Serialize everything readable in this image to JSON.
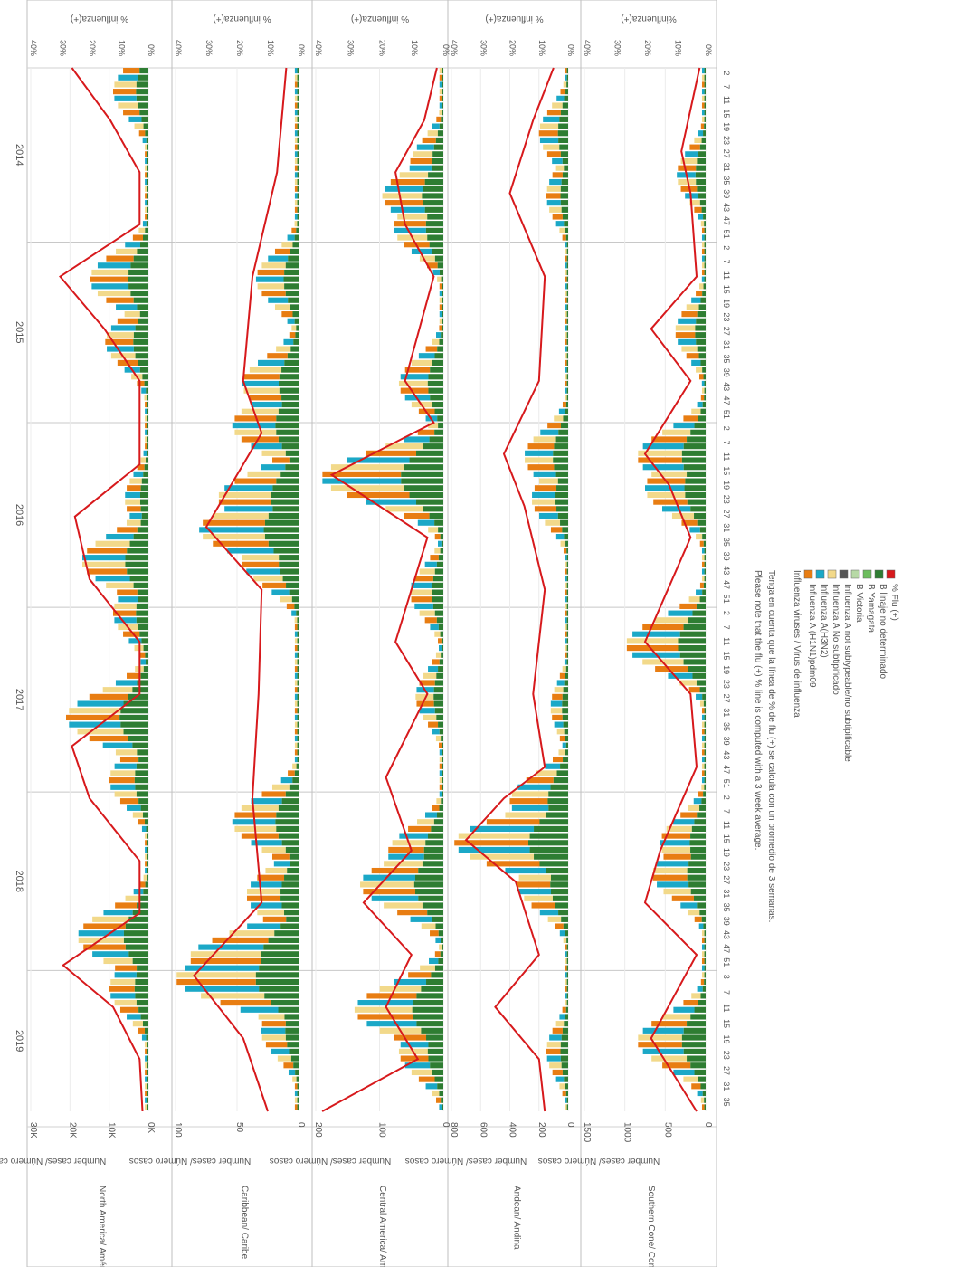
{
  "chart_data": {
    "type": "bar",
    "orientation": "rotated-90-clockwise",
    "years": [
      "2014",
      "2015",
      "2016",
      "2017",
      "2018",
      "2019"
    ],
    "week_ticks": [
      "2",
      "7",
      "11",
      "15",
      "19",
      "23",
      "27",
      "31",
      "35",
      "39",
      "43",
      "47",
      "51"
    ],
    "week_ticks_2019": [
      "3",
      "7",
      "11",
      "15",
      "19",
      "23",
      "27",
      "31",
      "35"
    ],
    "grid": true,
    "legend_position": "bottom-center",
    "legend": {
      "title": "Influenza viruses / Virus de influenza",
      "items": [
        {
          "label": "Influenza A (H1N1)pdm09",
          "color": "#e87d12"
        },
        {
          "label": "Influenza A(H3N2)",
          "color": "#1ba8c7"
        },
        {
          "label": "Influenza A No subtipificado",
          "color": "#f2d98a"
        },
        {
          "label": "Influenza A not subtypeable/no subtipificable",
          "color": "#555555"
        },
        {
          "label": "B Victoria",
          "color": "#b7d9a6"
        },
        {
          "label": "B Yamagata",
          "color": "#6cbd5d"
        },
        {
          "label": "B linaje no determinado",
          "color": "#2e7d32"
        },
        {
          "label": "% Flu (+)",
          "color": "#d7191c"
        }
      ]
    },
    "notes": [
      "Please note that the flu (+) % line is computed with a 3 week average.",
      "Tenga en cuenta que la línea de % de flu (+) se calcula con un promedio de 3 semanas."
    ],
    "panels": [
      {
        "name": "North America/ América del Norte",
        "y_axis_label": "Number cases/ Número casos",
        "y_ticks": [
          "0K",
          "10K",
          "20K",
          "30K"
        ],
        "y_max": 30000,
        "pct_label": "% influenza(+)",
        "pct_ticks": [
          "0%",
          "10%",
          "20%",
          "30%",
          "40%"
        ],
        "pct_max": 40,
        "bars": [
          {
            "x": 0.02,
            "v": 9000
          },
          {
            "x": 0.2,
            "v": 15000
          },
          {
            "x": 0.26,
            "v": 11000
          },
          {
            "x": 0.41,
            "v": 6000
          },
          {
            "x": 0.47,
            "v": 17000
          },
          {
            "x": 0.52,
            "v": 9000
          },
          {
            "x": 0.62,
            "v": 21000
          },
          {
            "x": 0.68,
            "v": 10000
          },
          {
            "x": 0.83,
            "v": 18000
          },
          {
            "x": 0.88,
            "v": 10000
          }
        ],
        "pct_line": [
          {
            "x": 0.0,
            "v": 26
          },
          {
            "x": 0.05,
            "v": 13
          },
          {
            "x": 0.1,
            "v": 3
          },
          {
            "x": 0.15,
            "v": 3
          },
          {
            "x": 0.2,
            "v": 30
          },
          {
            "x": 0.25,
            "v": 15
          },
          {
            "x": 0.3,
            "v": 3
          },
          {
            "x": 0.38,
            "v": 3
          },
          {
            "x": 0.43,
            "v": 25
          },
          {
            "x": 0.49,
            "v": 20
          },
          {
            "x": 0.55,
            "v": 3
          },
          {
            "x": 0.6,
            "v": 3
          },
          {
            "x": 0.65,
            "v": 26
          },
          {
            "x": 0.7,
            "v": 20
          },
          {
            "x": 0.76,
            "v": 3
          },
          {
            "x": 0.81,
            "v": 3
          },
          {
            "x": 0.86,
            "v": 29
          },
          {
            "x": 0.9,
            "v": 12
          },
          {
            "x": 0.95,
            "v": 3
          },
          {
            "x": 1.0,
            "v": 2
          }
        ]
      },
      {
        "name": "Caribbean/ Caribe",
        "y_axis_label": "Number cases/ Número casos",
        "y_ticks": [
          "0",
          "50",
          "100"
        ],
        "y_max": 130,
        "pct_label": "% influenza(+)",
        "pct_ticks": [
          "0%",
          "10%",
          "20%",
          "30%",
          "40%"
        ],
        "pct_max": 40,
        "bars": [
          {
            "x": 0.2,
            "v": 45
          },
          {
            "x": 0.3,
            "v": 60
          },
          {
            "x": 0.34,
            "v": 70
          },
          {
            "x": 0.41,
            "v": 85
          },
          {
            "x": 0.44,
            "v": 105
          },
          {
            "x": 0.47,
            "v": 60
          },
          {
            "x": 0.72,
            "v": 70
          },
          {
            "x": 0.79,
            "v": 55
          },
          {
            "x": 0.85,
            "v": 115
          },
          {
            "x": 0.87,
            "v": 130
          },
          {
            "x": 0.92,
            "v": 40
          }
        ],
        "pct_line": [
          {
            "x": 0.0,
            "v": 4
          },
          {
            "x": 0.1,
            "v": 7
          },
          {
            "x": 0.2,
            "v": 15
          },
          {
            "x": 0.3,
            "v": 18
          },
          {
            "x": 0.35,
            "v": 12
          },
          {
            "x": 0.44,
            "v": 30
          },
          {
            "x": 0.5,
            "v": 12
          },
          {
            "x": 0.6,
            "v": 13
          },
          {
            "x": 0.7,
            "v": 15
          },
          {
            "x": 0.8,
            "v": 12
          },
          {
            "x": 0.87,
            "v": 34
          },
          {
            "x": 0.93,
            "v": 18
          },
          {
            "x": 1.0,
            "v": 10
          }
        ]
      },
      {
        "name": "Central America/ América Central",
        "y_axis_label": "Number cases/ Número casos",
        "y_ticks": [
          "0",
          "100",
          "200"
        ],
        "y_max": 230,
        "pct_label": "% influenza(+)",
        "pct_ticks": [
          "0%",
          "10%",
          "20%",
          "30%",
          "40%"
        ],
        "pct_max": 40,
        "bars": [
          {
            "x": 0.09,
            "v": 60
          },
          {
            "x": 0.12,
            "v": 110
          },
          {
            "x": 0.15,
            "v": 90
          },
          {
            "x": 0.3,
            "v": 80
          },
          {
            "x": 0.39,
            "v": 220
          },
          {
            "x": 0.5,
            "v": 60
          },
          {
            "x": 0.6,
            "v": 50
          },
          {
            "x": 0.75,
            "v": 100
          },
          {
            "x": 0.78,
            "v": 150
          },
          {
            "x": 0.9,
            "v": 160
          },
          {
            "x": 0.94,
            "v": 80
          }
        ],
        "pct_line": [
          {
            "x": 0.0,
            "v": 2
          },
          {
            "x": 0.05,
            "v": 6
          },
          {
            "x": 0.1,
            "v": 15
          },
          {
            "x": 0.15,
            "v": 12
          },
          {
            "x": 0.2,
            "v": 3
          },
          {
            "x": 0.3,
            "v": 12
          },
          {
            "x": 0.34,
            "v": 3
          },
          {
            "x": 0.39,
            "v": 35
          },
          {
            "x": 0.45,
            "v": 5
          },
          {
            "x": 0.55,
            "v": 15
          },
          {
            "x": 0.6,
            "v": 5
          },
          {
            "x": 0.68,
            "v": 18
          },
          {
            "x": 0.75,
            "v": 10
          },
          {
            "x": 0.8,
            "v": 25
          },
          {
            "x": 0.85,
            "v": 10
          },
          {
            "x": 0.9,
            "v": 18
          },
          {
            "x": 0.95,
            "v": 8
          },
          {
            "x": 1.0,
            "v": 38
          }
        ]
      },
      {
        "name": "Andean/ Andina",
        "y_axis_label": "Number cases/ Número casos",
        "y_ticks": [
          "0",
          "200",
          "400",
          "600",
          "800"
        ],
        "y_max": 800,
        "pct_label": "% influenza(+)",
        "pct_ticks": [
          "0%",
          "10%",
          "20%",
          "30%",
          "40%"
        ],
        "pct_max": 40,
        "bars": [
          {
            "x": 0.06,
            "v": 200
          },
          {
            "x": 0.12,
            "v": 150
          },
          {
            "x": 0.37,
            "v": 300
          },
          {
            "x": 0.41,
            "v": 250
          },
          {
            "x": 0.61,
            "v": 120
          },
          {
            "x": 0.7,
            "v": 400
          },
          {
            "x": 0.74,
            "v": 780
          },
          {
            "x": 0.78,
            "v": 350
          },
          {
            "x": 0.94,
            "v": 150
          }
        ],
        "pct_line": [
          {
            "x": 0.0,
            "v": 5
          },
          {
            "x": 0.05,
            "v": 12
          },
          {
            "x": 0.12,
            "v": 20
          },
          {
            "x": 0.2,
            "v": 8
          },
          {
            "x": 0.3,
            "v": 10
          },
          {
            "x": 0.37,
            "v": 22
          },
          {
            "x": 0.42,
            "v": 15
          },
          {
            "x": 0.5,
            "v": 8
          },
          {
            "x": 0.6,
            "v": 12
          },
          {
            "x": 0.67,
            "v": 8
          },
          {
            "x": 0.7,
            "v": 22
          },
          {
            "x": 0.74,
            "v": 35
          },
          {
            "x": 0.78,
            "v": 18
          },
          {
            "x": 0.85,
            "v": 10
          },
          {
            "x": 0.9,
            "v": 25
          },
          {
            "x": 0.95,
            "v": 10
          },
          {
            "x": 1.0,
            "v": 8
          }
        ]
      },
      {
        "name": "Southern Cone/ Cono Sur",
        "y_axis_label": "Number cases/ Número casos",
        "y_ticks": [
          "0",
          "500",
          "1000",
          "1500"
        ],
        "y_max": 1600,
        "pct_label": "%influenza(+)",
        "pct_ticks": [
          "0%",
          "10%",
          "20%",
          "30%",
          "40%"
        ],
        "pct_max": 40,
        "bars": [
          {
            "x": 0.1,
            "v": 380
          },
          {
            "x": 0.25,
            "v": 400
          },
          {
            "x": 0.37,
            "v": 900
          },
          {
            "x": 0.4,
            "v": 800
          },
          {
            "x": 0.55,
            "v": 1050
          },
          {
            "x": 0.74,
            "v": 600
          },
          {
            "x": 0.77,
            "v": 700
          },
          {
            "x": 0.93,
            "v": 900
          }
        ],
        "pct_line": [
          {
            "x": 0.0,
            "v": 2
          },
          {
            "x": 0.08,
            "v": 8
          },
          {
            "x": 0.12,
            "v": 5
          },
          {
            "x": 0.2,
            "v": 3
          },
          {
            "x": 0.25,
            "v": 18
          },
          {
            "x": 0.3,
            "v": 5
          },
          {
            "x": 0.37,
            "v": 20
          },
          {
            "x": 0.4,
            "v": 12
          },
          {
            "x": 0.45,
            "v": 5
          },
          {
            "x": 0.55,
            "v": 20
          },
          {
            "x": 0.6,
            "v": 5
          },
          {
            "x": 0.67,
            "v": 3
          },
          {
            "x": 0.75,
            "v": 15
          },
          {
            "x": 0.8,
            "v": 20
          },
          {
            "x": 0.85,
            "v": 3
          },
          {
            "x": 0.93,
            "v": 18
          },
          {
            "x": 1.0,
            "v": 3
          }
        ]
      }
    ]
  }
}
